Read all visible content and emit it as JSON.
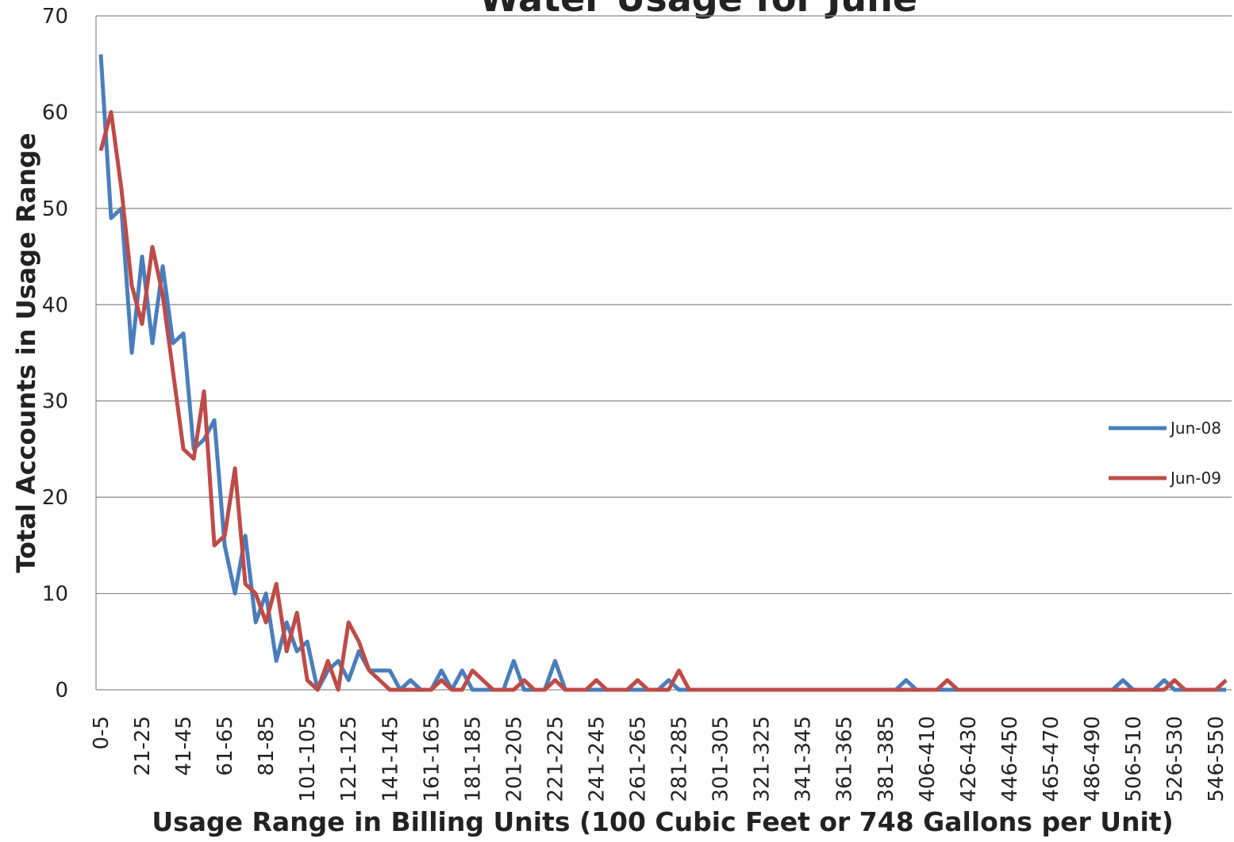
{
  "chart_data": {
    "type": "line",
    "title": "Water Usage for June",
    "x_label": "Usage Range in  Billing Units  (100 Cubic Feet or 748 Gallons per Unit)",
    "y_label": "Total Accounts in Usage Range",
    "categories": [
      "0-5",
      null,
      null,
      null,
      "21-25",
      null,
      null,
      null,
      "41-45",
      null,
      null,
      null,
      "61-65",
      null,
      null,
      null,
      "81-85",
      null,
      null,
      null,
      "101-105",
      null,
      null,
      null,
      "121-125",
      null,
      null,
      null,
      "141-145",
      null,
      null,
      null,
      "161-165",
      null,
      null,
      null,
      "181-185",
      null,
      null,
      null,
      "201-205",
      null,
      null,
      null,
      "221-225",
      null,
      null,
      null,
      "241-245",
      null,
      null,
      null,
      "261-265",
      null,
      null,
      null,
      "281-285",
      null,
      null,
      null,
      "301-305",
      null,
      null,
      null,
      "321-325",
      null,
      null,
      null,
      "341-345",
      null,
      null,
      null,
      "361-365",
      null,
      null,
      null,
      "381-385",
      null,
      null,
      null,
      "406-410",
      null,
      null,
      null,
      "426-430",
      null,
      null,
      null,
      "446-450",
      null,
      null,
      null,
      "465-470",
      null,
      null,
      null,
      "486-490",
      null,
      null,
      null,
      "506-510",
      null,
      null,
      null,
      "526-530",
      null,
      null,
      null,
      "546-550",
      null
    ],
    "series": [
      {
        "name": "Jun-08",
        "color": "#4a7ebb",
        "values": [
          66,
          49,
          50,
          35,
          45,
          36,
          44,
          36,
          37,
          25,
          26,
          28,
          15,
          10,
          16,
          7,
          10,
          3,
          7,
          4,
          5,
          0,
          2,
          3,
          1,
          4,
          2,
          2,
          2,
          0,
          1,
          0,
          0,
          2,
          0,
          2,
          0,
          0,
          0,
          0,
          3,
          0,
          0,
          0,
          3,
          0,
          0,
          0,
          0,
          0,
          0,
          0,
          0,
          0,
          0,
          1,
          0,
          0,
          0,
          0,
          0,
          0,
          0,
          0,
          0,
          0,
          0,
          0,
          0,
          0,
          0,
          0,
          0,
          0,
          0,
          0,
          0,
          0,
          1,
          0,
          0,
          0,
          0,
          0,
          0,
          0,
          0,
          0,
          0,
          0,
          0,
          0,
          0,
          0,
          0,
          0,
          0,
          0,
          0,
          1,
          0,
          0,
          0,
          1,
          0,
          0,
          0,
          0,
          0,
          0
        ]
      },
      {
        "name": "Jun-09",
        "color": "#be4b48",
        "values": [
          56,
          60,
          52,
          42,
          38,
          46,
          41,
          33,
          25,
          24,
          31,
          15,
          16,
          23,
          11,
          10,
          7,
          11,
          4,
          8,
          1,
          0,
          3,
          0,
          7,
          5,
          2,
          1,
          0,
          0,
          0,
          0,
          0,
          1,
          0,
          0,
          2,
          1,
          0,
          0,
          0,
          1,
          0,
          0,
          1,
          0,
          0,
          0,
          1,
          0,
          0,
          0,
          1,
          0,
          0,
          0,
          2,
          0,
          0,
          0,
          0,
          0,
          0,
          0,
          0,
          0,
          0,
          0,
          0,
          0,
          0,
          0,
          0,
          0,
          0,
          0,
          0,
          0,
          0,
          0,
          0,
          0,
          1,
          0,
          0,
          0,
          0,
          0,
          0,
          0,
          0,
          0,
          0,
          0,
          0,
          0,
          0,
          0,
          0,
          0,
          0,
          0,
          0,
          0,
          1,
          0,
          0,
          0,
          0,
          1
        ]
      }
    ],
    "ylim": [
      0,
      70
    ],
    "yticks": [
      0,
      10,
      20,
      30,
      40,
      50,
      60,
      70
    ],
    "grid": true,
    "legend": "right"
  }
}
